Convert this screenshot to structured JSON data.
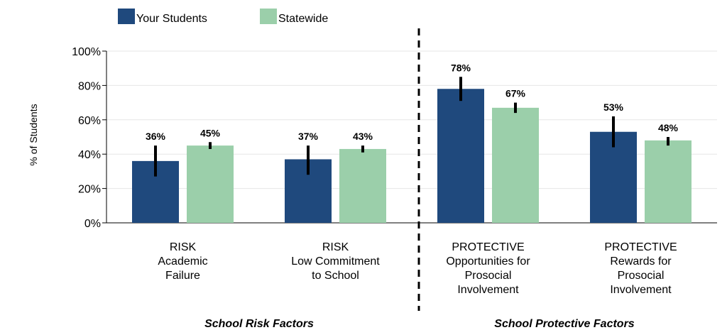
{
  "chart_data": {
    "type": "bar",
    "ylabel": "% of Students",
    "ylim": [
      0,
      100
    ],
    "yticks": [
      0,
      20,
      40,
      60,
      80,
      100
    ],
    "ytick_suffix": "%",
    "grid": true,
    "legend_position": "top-left",
    "categories": [
      [
        "RISK",
        "Academic",
        "Failure"
      ],
      [
        "RISK",
        "Low Commitment",
        "to School"
      ],
      [
        "PROTECTIVE",
        "Opportunities for",
        "Prosocial",
        "Involvement"
      ],
      [
        "PROTECTIVE",
        "Rewards for",
        "Prosocial",
        "Involvement"
      ]
    ],
    "series": [
      {
        "name": "Your Students",
        "color": "#1f497d",
        "values": [
          36,
          37,
          78,
          53
        ],
        "labels": [
          "36%",
          "37%",
          "78%",
          "53%"
        ],
        "error_low": [
          27,
          28,
          71,
          44
        ],
        "error_high": [
          45,
          45,
          85,
          62
        ]
      },
      {
        "name": "Statewide",
        "color": "#9bcfaa",
        "values": [
          45,
          43,
          67,
          48
        ],
        "labels": [
          "45%",
          "43%",
          "67%",
          "48%"
        ],
        "error_low": [
          43,
          41,
          64,
          45
        ],
        "error_high": [
          47,
          45,
          70,
          50
        ]
      }
    ],
    "groups": [
      {
        "title": "School Risk Factors",
        "categories": [
          0,
          1
        ]
      },
      {
        "title": "School Protective Factors",
        "categories": [
          2,
          3
        ]
      }
    ],
    "error_bar_color": "#000000",
    "grid_color": "#e6e6e6"
  }
}
